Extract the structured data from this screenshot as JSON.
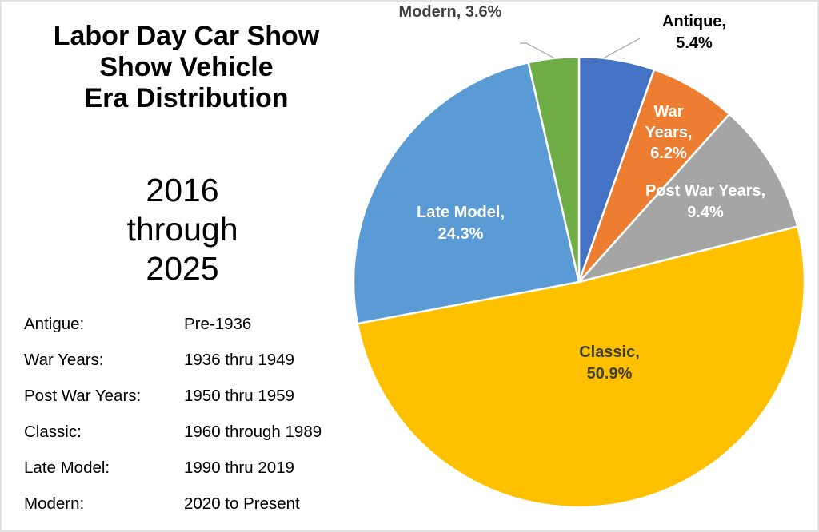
{
  "title_lines": [
    "Labor Day Car Show",
    "Show Vehicle",
    "Era Distribution"
  ],
  "period_lines": [
    "2016",
    "through",
    "2025"
  ],
  "era_definitions": [
    {
      "era": "Antigue:",
      "range": "Pre-1936"
    },
    {
      "era": "War Years:",
      "range": "1936 thru 1949"
    },
    {
      "era": "Post War Years:",
      "range": "1950 thru 1959"
    },
    {
      "era": "Classic:",
      "range": "1960 through 1989"
    },
    {
      "era": "Late Model:",
      "range": "1990 thru 2019"
    },
    {
      "era": "Modern:",
      "range": "2020 to Present"
    }
  ],
  "chart_data": {
    "type": "pie",
    "title": "Labor Day Car Show Show Vehicle Era Distribution",
    "subtitle": "2016 through 2025",
    "start_angle": "12 o'clock, clockwise",
    "slices": [
      {
        "name": "Antique",
        "value": 5.4,
        "color": "#4472C4",
        "label": [
          "Antique,",
          "5.4%"
        ],
        "label_color": "#000000",
        "label_position": "outside"
      },
      {
        "name": "War Years",
        "value": 6.2,
        "color": "#ED7D31",
        "label": [
          "War",
          "Years,",
          "6.2%"
        ],
        "label_color": "#FFFFFF",
        "label_position": "inside"
      },
      {
        "name": "Post War Years",
        "value": 9.4,
        "color": "#A5A5A5",
        "label": [
          "Post War Years,",
          "9.4%"
        ],
        "label_color": "#FFFFFF",
        "label_position": "inside"
      },
      {
        "name": "Classic",
        "value": 50.9,
        "color": "#FFC000",
        "label": [
          "Classic,",
          "50.9%"
        ],
        "label_color": "#404040",
        "label_position": "inside"
      },
      {
        "name": "Late Model",
        "value": 24.3,
        "color": "#5B9BD5",
        "label": [
          "Late Model,",
          "24.3%"
        ],
        "label_color": "#FFFFFF",
        "label_position": "inside"
      },
      {
        "name": "Modern",
        "value": 3.6,
        "color": "#70AD47",
        "label": [
          "Modern, 3.6%"
        ],
        "label_color": "#404040",
        "label_position": "outside"
      }
    ],
    "units": "percent"
  }
}
